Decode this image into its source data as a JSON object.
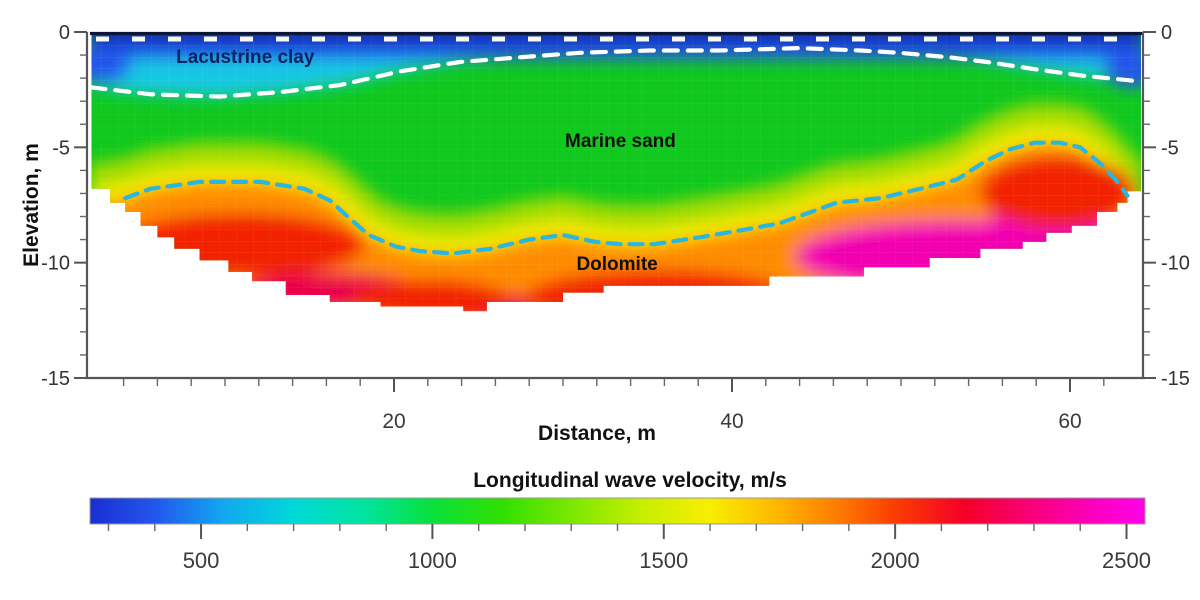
{
  "chart_data": {
    "type": "heatmap",
    "title": "",
    "xlabel": "Distance, m",
    "ylabel": "Elevation, m",
    "colorbar_label": "Longitudinal wave velocity, m/s",
    "xlim": [
      2,
      64.2
    ],
    "ylim": [
      -15,
      0
    ],
    "x_ticks": [
      20,
      40,
      60
    ],
    "x_minor_step": 2,
    "y_ticks": [
      0,
      -5,
      -10,
      -15
    ],
    "y_minor_step": 1,
    "grid": false,
    "colorbar": {
      "vmin": 260,
      "vmax": 2540,
      "ticks": [
        500,
        1000,
        1500,
        2000,
        2500
      ],
      "minor_step": 100,
      "stops": [
        [
          260,
          "#1a2ed2"
        ],
        [
          400,
          "#2356ec"
        ],
        [
          550,
          "#12a8f0"
        ],
        [
          700,
          "#00d8d8"
        ],
        [
          850,
          "#00e4a0"
        ],
        [
          1000,
          "#0ae03c"
        ],
        [
          1150,
          "#30e000"
        ],
        [
          1300,
          "#7ce800"
        ],
        [
          1450,
          "#c6ee00"
        ],
        [
          1600,
          "#f8ee00"
        ],
        [
          1750,
          "#ffb400"
        ],
        [
          1900,
          "#ff7000"
        ],
        [
          2000,
          "#fa3c00"
        ],
        [
          2150,
          "#f50028"
        ],
        [
          2300,
          "#f8007c"
        ],
        [
          2450,
          "#fc00c8"
        ],
        [
          2540,
          "#ff00e6"
        ]
      ]
    },
    "annotations": [
      {
        "label": "Lacustrine clay",
        "color": "#0d2260",
        "pos_m": [
          11.2,
          -1.34
        ]
      },
      {
        "label": "Marine sand",
        "color": "#101010",
        "pos_m": [
          33.4,
          -4.98
        ]
      },
      {
        "label": "Dolomite",
        "color": "#101010",
        "pos_m": [
          33.2,
          -10.32
        ]
      }
    ],
    "boundaries": {
      "clay_sand": {
        "style": "dashed",
        "color": "#ffffff",
        "points_m": [
          [
            2.1,
            -2.4
          ],
          [
            5.6,
            -2.7
          ],
          [
            9.7,
            -2.8
          ],
          [
            13.3,
            -2.6
          ],
          [
            16.8,
            -2.3
          ],
          [
            20.4,
            -1.7
          ],
          [
            23.9,
            -1.3
          ],
          [
            27.4,
            -1.1
          ],
          [
            31.0,
            -0.9
          ],
          [
            35.1,
            -0.8
          ],
          [
            39.3,
            -0.8
          ],
          [
            44.0,
            -0.7
          ],
          [
            47.6,
            -0.8
          ],
          [
            49.9,
            -0.9
          ],
          [
            52.9,
            -1.1
          ],
          [
            55.1,
            -1.3
          ],
          [
            57.8,
            -1.6
          ],
          [
            60.8,
            -1.9
          ],
          [
            63.6,
            -2.1
          ],
          [
            64.2,
            -2.2
          ]
        ]
      },
      "sand_dolomite": {
        "style": "dashed",
        "color": "#29b6e0",
        "points_m": [
          [
            4.1,
            -7.2
          ],
          [
            5.6,
            -6.8
          ],
          [
            8.5,
            -6.5
          ],
          [
            12.1,
            -6.5
          ],
          [
            14.7,
            -6.8
          ],
          [
            16.2,
            -7.3
          ],
          [
            17.4,
            -8.1
          ],
          [
            18.5,
            -8.8
          ],
          [
            20.1,
            -9.3
          ],
          [
            21.5,
            -9.5
          ],
          [
            23.5,
            -9.6
          ],
          [
            25.7,
            -9.4
          ],
          [
            28.0,
            -9.0
          ],
          [
            30.0,
            -8.8
          ],
          [
            31.9,
            -9.1
          ],
          [
            33.4,
            -9.2
          ],
          [
            35.4,
            -9.2
          ],
          [
            38.1,
            -8.9
          ],
          [
            40.5,
            -8.6
          ],
          [
            42.8,
            -8.3
          ],
          [
            46.2,
            -7.4
          ],
          [
            48.8,
            -7.2
          ],
          [
            51.7,
            -6.7
          ],
          [
            53.3,
            -6.4
          ],
          [
            55.0,
            -5.6
          ],
          [
            56.4,
            -5.1
          ],
          [
            57.9,
            -4.8
          ],
          [
            59.4,
            -4.8
          ],
          [
            60.6,
            -5.0
          ],
          [
            61.8,
            -5.7
          ],
          [
            62.7,
            -6.4
          ],
          [
            63.4,
            -7.1
          ]
        ]
      },
      "surface_elevation_m": 0,
      "surface_dash_color": "#f8f8ee"
    },
    "coverage_bottom_steps_m": [
      [
        2.1,
        3.2,
        -6.8
      ],
      [
        3.2,
        4.1,
        -7.4
      ],
      [
        4.1,
        5.0,
        -7.8
      ],
      [
        5.0,
        6.0,
        -8.4
      ],
      [
        6.0,
        7.0,
        -8.9
      ],
      [
        7.0,
        8.5,
        -9.4
      ],
      [
        8.5,
        10.2,
        -9.9
      ],
      [
        10.2,
        11.6,
        -10.4
      ],
      [
        11.6,
        13.6,
        -10.8
      ],
      [
        13.6,
        16.2,
        -11.4
      ],
      [
        16.2,
        19.2,
        -11.7
      ],
      [
        19.2,
        24.1,
        -11.9
      ],
      [
        24.1,
        25.5,
        -12.1
      ],
      [
        25.5,
        30.0,
        -11.7
      ],
      [
        30.0,
        32.4,
        -11.3
      ],
      [
        32.4,
        42.2,
        -11.0
      ],
      [
        42.2,
        47.8,
        -10.6
      ],
      [
        47.8,
        51.7,
        -10.2
      ],
      [
        51.7,
        54.7,
        -9.8
      ],
      [
        54.7,
        57.2,
        -9.4
      ],
      [
        57.2,
        58.6,
        -9.1
      ],
      [
        58.6,
        60.1,
        -8.7
      ],
      [
        60.1,
        61.6,
        -8.4
      ],
      [
        61.6,
        62.8,
        -7.8
      ],
      [
        62.8,
        63.4,
        -7.4
      ],
      [
        63.4,
        64.2,
        -6.9
      ]
    ],
    "palette": {
      "navy": "#102cb0",
      "blue": "#2357ea",
      "cyan": "#16c8e4",
      "green": "#10c81e",
      "yellow_green": "#a6dc00",
      "yellow": "#f6ee00",
      "orange": "#ff8c00",
      "red": "#f22000",
      "crimson": "#ea0048",
      "magenta": "#f200b0",
      "top_border": "#0b1538"
    }
  }
}
